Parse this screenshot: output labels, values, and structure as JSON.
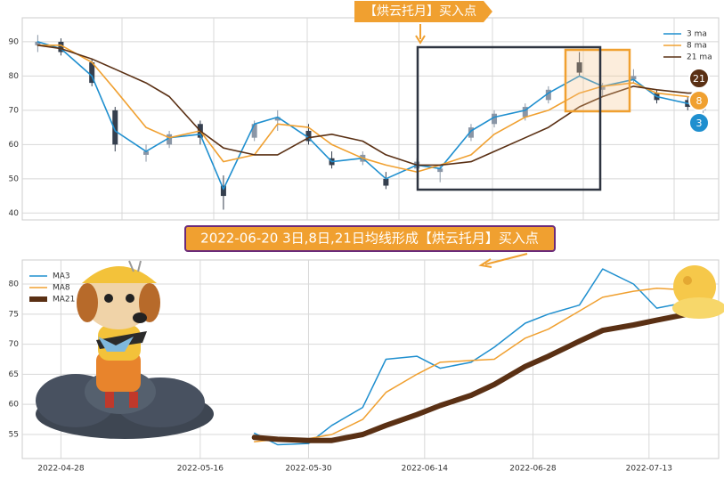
{
  "chart_data": [
    {
      "type": "candlestick",
      "banner": "【烘云托月】买入点",
      "x": [
        "2022-04-25",
        "2022-04-28",
        "2022-05-02",
        "2022-05-05",
        "2022-05-09",
        "2022-05-12",
        "2022-05-16",
        "2022-05-19",
        "2022-05-23",
        "2022-05-26",
        "2022-05-30",
        "2022-06-02",
        "2022-06-06",
        "2022-06-09",
        "2022-06-13",
        "2022-06-16",
        "2022-06-20",
        "2022-06-23",
        "2022-06-27",
        "2022-06-30",
        "2022-07-04",
        "2022-07-07",
        "2022-07-11",
        "2022-07-14",
        "2022-07-18",
        "2022-07-20"
      ],
      "open": [
        89,
        90,
        84,
        70,
        57,
        60,
        66,
        48,
        62,
        67,
        64,
        56,
        55,
        50,
        53,
        52,
        62,
        66,
        68,
        73,
        84,
        76,
        79,
        75,
        73,
        70
      ],
      "high": [
        92,
        91,
        85,
        71,
        60,
        64,
        67,
        51,
        67,
        70,
        66,
        58,
        58,
        52,
        56,
        54,
        66,
        70,
        72,
        77,
        87,
        78,
        82,
        76,
        74,
        73
      ],
      "low": [
        87,
        86,
        77,
        58,
        55,
        59,
        60,
        41,
        61,
        64,
        60,
        53,
        54,
        47,
        52,
        49,
        61,
        65,
        67,
        72,
        80,
        74,
        78,
        72,
        70,
        69
      ],
      "close": [
        90,
        87,
        78,
        60,
        58,
        63,
        62,
        45,
        66,
        68,
        61,
        54,
        57,
        48,
        55,
        53,
        65,
        69,
        71,
        76,
        81,
        77,
        80,
        73,
        71,
        72
      ],
      "up_color": "#8a96a6",
      "down_color": "#353f4e",
      "series": [
        {
          "name": "3 ma",
          "color": "#1f8fcf",
          "values": [
            90,
            88,
            80,
            64,
            58,
            62,
            63,
            47,
            66,
            68,
            62,
            55,
            56,
            50,
            54,
            53,
            64,
            68,
            70,
            75,
            80,
            77,
            79,
            74,
            72,
            71
          ]
        },
        {
          "name": "8 ma",
          "color": "#f0a030",
          "values": [
            89,
            89,
            84,
            76,
            65,
            62,
            64,
            55,
            57,
            66,
            65,
            60,
            56,
            54,
            52,
            54,
            57,
            63,
            68,
            70,
            75,
            77,
            78,
            75,
            74,
            73
          ]
        },
        {
          "name": "21 ma",
          "color": "#5a3014",
          "values": [
            89,
            88,
            85,
            82,
            78,
            74,
            64,
            59,
            57,
            57,
            62,
            63,
            61,
            57,
            54,
            54,
            55,
            58,
            62,
            65,
            71,
            74,
            77,
            76,
            75,
            75
          ]
        }
      ],
      "badges": [
        "21",
        "8",
        "3"
      ],
      "xlim": [
        "2022-04-23",
        "2022-07-22"
      ],
      "ylim": [
        38,
        97
      ],
      "yticks": [
        40,
        50,
        60,
        70,
        80,
        90
      ],
      "grid": true,
      "legend": "upper right"
    },
    {
      "type": "line",
      "banner": "2022-06-20 3日,8日,21日均线形成【烘云托月】买入点",
      "x": [
        "2022-05-23",
        "2022-05-26",
        "2022-05-30",
        "2022-06-02",
        "2022-06-06",
        "2022-06-09",
        "2022-06-13",
        "2022-06-16",
        "2022-06-20",
        "2022-06-23",
        "2022-06-27",
        "2022-06-30",
        "2022-07-04",
        "2022-07-07",
        "2022-07-11",
        "2022-07-14",
        "2022-07-18"
      ],
      "series": [
        {
          "name": "MA3",
          "color": "#1f8fcf",
          "width": 1.5,
          "values": [
            55.2,
            53.3,
            53.5,
            56.5,
            59.5,
            67.5,
            68.0,
            66.0,
            67.0,
            69.5,
            73.5,
            75.0,
            76.5,
            82.5,
            80.0,
            76.0,
            77.0
          ]
        },
        {
          "name": "MA8",
          "color": "#f0a030",
          "width": 1.5,
          "values": [
            53.8,
            54.2,
            54.3,
            55.0,
            57.5,
            62.0,
            65.0,
            67.0,
            67.3,
            67.5,
            71.0,
            72.5,
            75.5,
            77.8,
            78.8,
            79.3,
            79.0
          ]
        },
        {
          "name": "MA21",
          "color": "#5a3014",
          "width": 6,
          "values": [
            54.5,
            54.2,
            54.0,
            54.0,
            55.0,
            56.5,
            58.3,
            59.8,
            61.5,
            63.3,
            66.3,
            68.0,
            70.5,
            72.3,
            73.2,
            74.0,
            75.0
          ]
        }
      ],
      "xlim": [
        "2022-04-23",
        "2022-07-22"
      ],
      "ylim": [
        51,
        84
      ],
      "yticks": [
        55,
        60,
        65,
        70,
        75,
        80
      ],
      "xticks": [
        "2022-04-28",
        "2022-05-16",
        "2022-05-30",
        "2022-06-14",
        "2022-06-28",
        "2022-07-13"
      ],
      "grid": true,
      "legend": "upper left"
    }
  ]
}
